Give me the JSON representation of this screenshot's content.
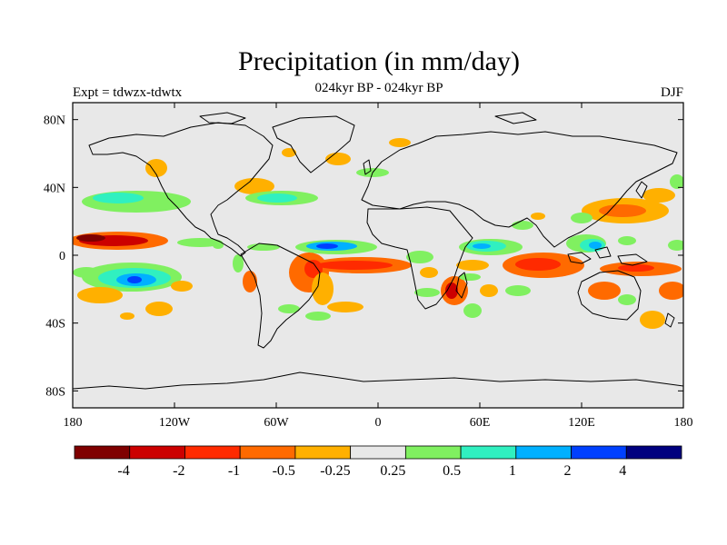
{
  "title": "Precipitation (in mm/day)",
  "subtitle": "024kyr BP - 024kyr BP",
  "experiment": "Expt = tdwzx-tdwtx",
  "season": "DJF",
  "lat_ticks": [
    {
      "value": 80,
      "label": "80N"
    },
    {
      "value": 40,
      "label": "40N"
    },
    {
      "value": 0,
      "label": "0"
    },
    {
      "value": -40,
      "label": "40S"
    },
    {
      "value": -80,
      "label": "80S"
    }
  ],
  "lon_ticks": [
    {
      "value": -180,
      "label": "180"
    },
    {
      "value": -120,
      "label": "120W"
    },
    {
      "value": -60,
      "label": "60W"
    },
    {
      "value": 0,
      "label": "0"
    },
    {
      "value": 60,
      "label": "60E"
    },
    {
      "value": 120,
      "label": "120E"
    },
    {
      "value": 180,
      "label": "180"
    }
  ],
  "colorbar": {
    "colors": [
      "#7f0000",
      "#cc0000",
      "#ff2a00",
      "#ff6a00",
      "#ffb000",
      "#e8e8e8",
      "#80f060",
      "#30f0c0",
      "#00b0ff",
      "#0040ff",
      "#00007f"
    ],
    "labels": [
      "-4",
      "-2",
      "-1",
      "-0.5",
      "-0.25",
      "0.25",
      "0.5",
      "1",
      "2",
      "4"
    ]
  },
  "map_colors": {
    "ocean_background": "#e8e8e8",
    "coastline": "#000000"
  }
}
